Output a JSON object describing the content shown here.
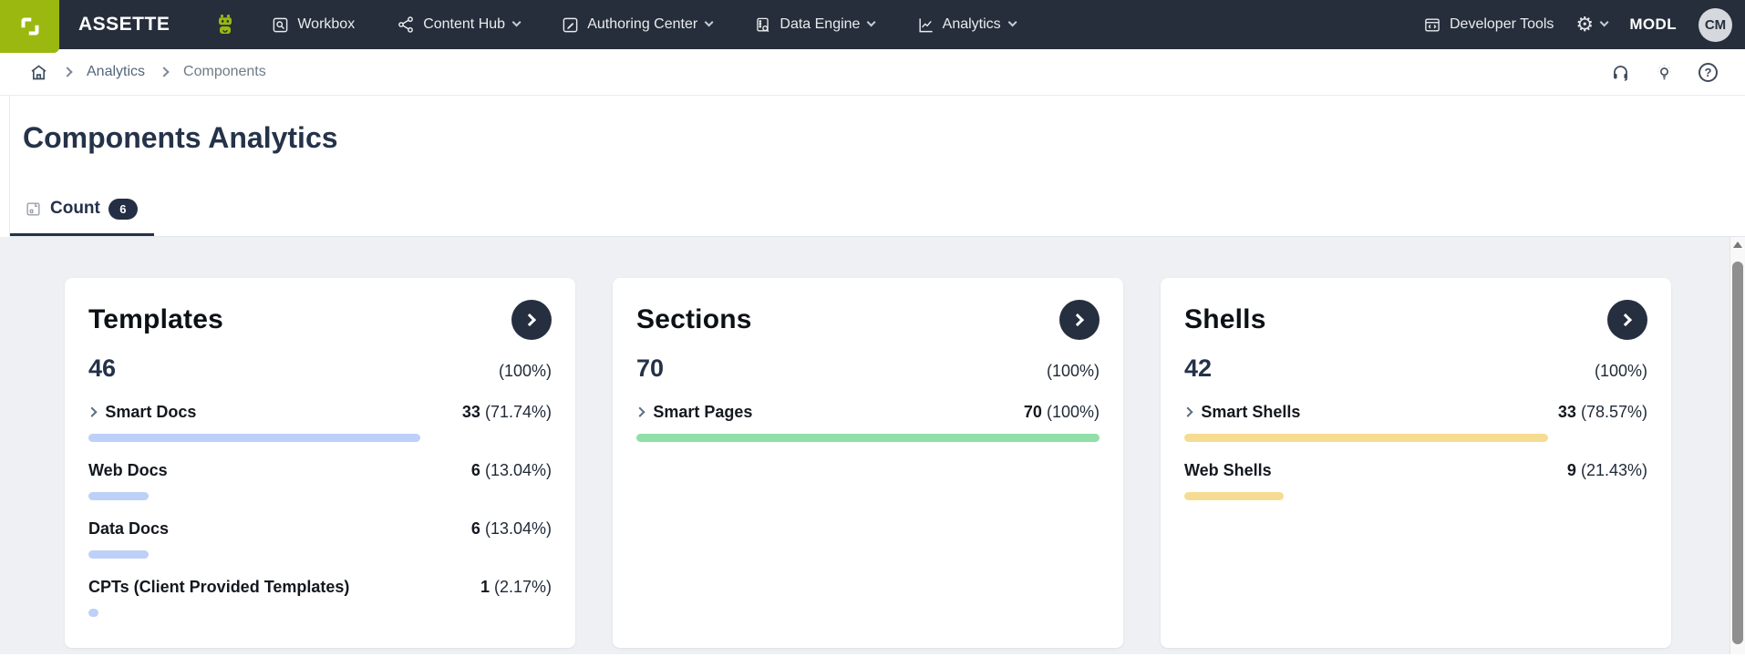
{
  "topbar": {
    "brand": "ASSETTE",
    "nav": [
      {
        "label": "Workbox"
      },
      {
        "label": "Content Hub"
      },
      {
        "label": "Authoring Center"
      },
      {
        "label": "Data Engine"
      },
      {
        "label": "Analytics"
      }
    ],
    "developer_tools": "Developer Tools",
    "org": "MODL",
    "avatar_initials": "CM"
  },
  "breadcrumb": {
    "items": [
      "Analytics",
      "Components"
    ]
  },
  "page": {
    "title": "Components Analytics"
  },
  "tabs": [
    {
      "label": "Count",
      "badge": "6",
      "active": true
    }
  ],
  "cards": [
    {
      "title": "Templates",
      "total": "46",
      "total_pct": "(100%)",
      "bar_color": "#bdd0f7",
      "rows": [
        {
          "label": "Smart Docs",
          "value": "33",
          "pct_text": "(71.74%)",
          "pct": 71.74,
          "expandable": true
        },
        {
          "label": "Web Docs",
          "value": "6",
          "pct_text": "(13.04%)",
          "pct": 13.04,
          "expandable": false
        },
        {
          "label": "Data Docs",
          "value": "6",
          "pct_text": "(13.04%)",
          "pct": 13.04,
          "expandable": false
        },
        {
          "label": "CPTs (Client Provided Templates)",
          "value": "1",
          "pct_text": "(2.17%)",
          "pct": 2.17,
          "expandable": false
        }
      ]
    },
    {
      "title": "Sections",
      "total": "70",
      "total_pct": "(100%)",
      "bar_color": "#90dfa7",
      "rows": [
        {
          "label": "Smart Pages",
          "value": "70",
          "pct_text": "(100%)",
          "pct": 100,
          "expandable": true
        }
      ]
    },
    {
      "title": "Shells",
      "total": "42",
      "total_pct": "(100%)",
      "bar_color": "#f6dc92",
      "rows": [
        {
          "label": "Smart Shells",
          "value": "33",
          "pct_text": "(78.57%)",
          "pct": 78.57,
          "expandable": true
        },
        {
          "label": "Web Shells",
          "value": "9",
          "pct_text": "(21.43%)",
          "pct": 21.43,
          "expandable": false
        }
      ]
    }
  ],
  "colors": {
    "accent_green": "#9ab810",
    "topbar_bg": "#262e3b",
    "navy": "#243249",
    "bar_blue": "#bdd0f7",
    "bar_green": "#90dfa7",
    "bar_yellow": "#f6dc92",
    "content_bg": "#eef0f4"
  }
}
